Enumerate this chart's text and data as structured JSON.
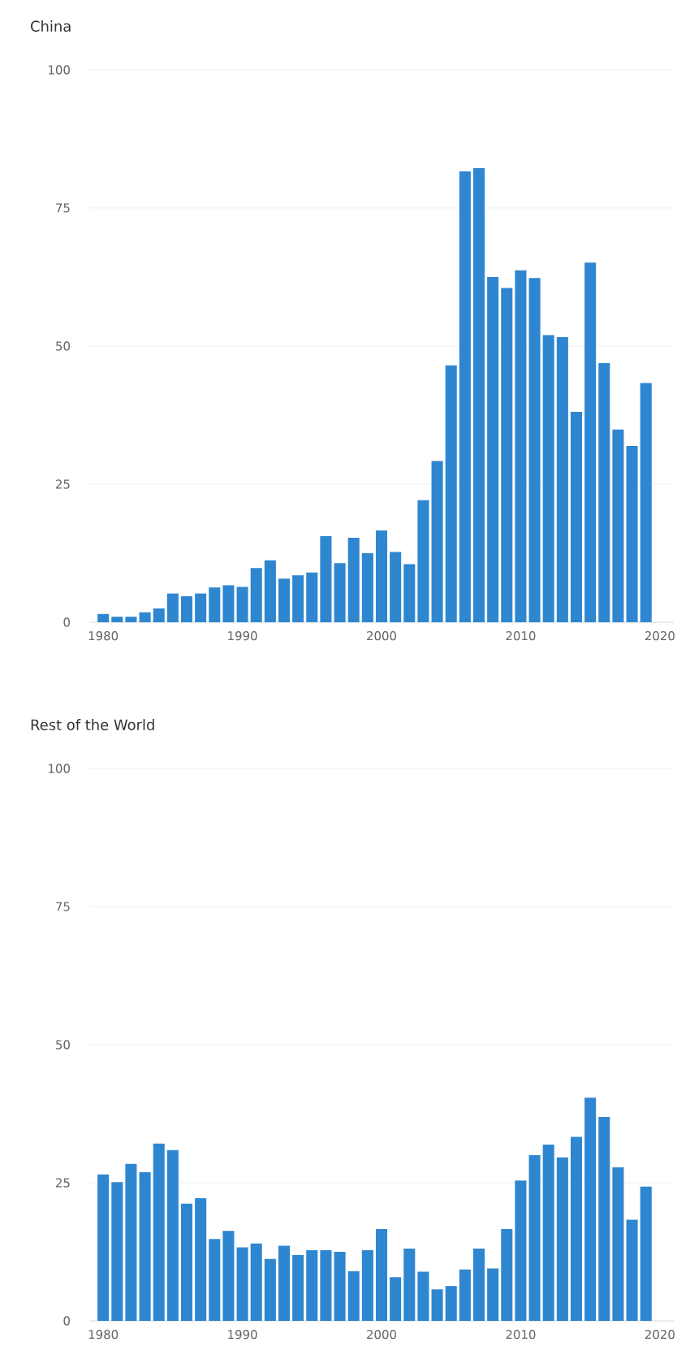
{
  "chart_data": [
    {
      "type": "bar",
      "title": "China",
      "x": [
        1980,
        1981,
        1982,
        1983,
        1984,
        1985,
        1986,
        1987,
        1988,
        1989,
        1990,
        1991,
        1992,
        1993,
        1994,
        1995,
        1996,
        1997,
        1998,
        1999,
        2000,
        2001,
        2002,
        2003,
        2004,
        2005,
        2006,
        2007,
        2008,
        2009,
        2010,
        2011,
        2012,
        2013,
        2014,
        2015,
        2016,
        2017,
        2018,
        2019
      ],
      "values": [
        1.5,
        1,
        1,
        1.8,
        2.5,
        5.2,
        4.7,
        5.2,
        6.3,
        6.7,
        6.4,
        9.8,
        11.2,
        7.9,
        8.5,
        9,
        15.6,
        10.7,
        15.3,
        12.5,
        16.6,
        12.7,
        10.5,
        22.1,
        29.2,
        46.5,
        81.6,
        82.2,
        62.5,
        60.5,
        63.7,
        62.3,
        52,
        51.6,
        38.1,
        65.1,
        46.9,
        34.9,
        31.9,
        43.3
      ],
      "color": "#2f86d0",
      "xlim": [
        1979,
        2021
      ],
      "xticks": [
        1980,
        1990,
        2000,
        2010,
        2020
      ],
      "ylim": [
        0,
        100
      ],
      "yticks": [
        0,
        25,
        50,
        75,
        100
      ],
      "grid": "y"
    },
    {
      "type": "bar",
      "title": "Rest of the World",
      "x": [
        1980,
        1981,
        1982,
        1983,
        1984,
        1985,
        1986,
        1987,
        1988,
        1989,
        1990,
        1991,
        1992,
        1993,
        1994,
        1995,
        1996,
        1997,
        1998,
        1999,
        2000,
        2001,
        2002,
        2003,
        2004,
        2005,
        2006,
        2007,
        2008,
        2009,
        2010,
        2011,
        2012,
        2013,
        2014,
        2015,
        2016,
        2017,
        2018,
        2019
      ],
      "values": [
        26.5,
        25.1,
        28.4,
        26.9,
        32.1,
        30.9,
        21.2,
        22.2,
        14.8,
        16.3,
        13.3,
        14,
        11.2,
        13.6,
        11.9,
        12.8,
        12.8,
        12.5,
        9,
        12.8,
        16.6,
        7.9,
        13.1,
        8.9,
        5.7,
        6.3,
        9.3,
        13.1,
        9.5,
        16.6,
        25.4,
        30,
        31.9,
        29.6,
        33.3,
        40.4,
        36.9,
        27.8,
        18.3,
        24.3
      ],
      "color": "#2f86d0",
      "xlim": [
        1979,
        2021
      ],
      "xticks": [
        1980,
        1990,
        2000,
        2010,
        2020
      ],
      "ylim": [
        0,
        100
      ],
      "yticks": [
        0,
        25,
        50,
        75,
        100
      ],
      "grid": "y"
    }
  ]
}
